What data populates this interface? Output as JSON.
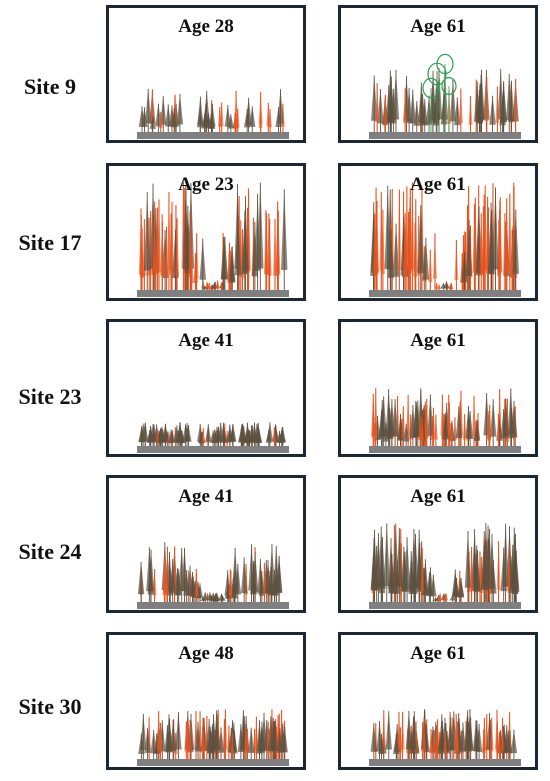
{
  "colors": {
    "frame": "#1d2733",
    "ground": "#7f7f7f",
    "live_tree": "#5c5140",
    "dead_tree": "#e8541f",
    "green_tree": "#2f9e50"
  },
  "rows": [
    {
      "site": "Site 9",
      "panels": [
        {
          "age": "Age 28",
          "profile": "low_sparse"
        },
        {
          "age": "Age 61",
          "profile": "mid_green"
        }
      ]
    },
    {
      "site": "Site 17",
      "panels": [
        {
          "age": "Age 23",
          "profile": "tall_gap"
        },
        {
          "age": "Age 61",
          "profile": "tall_gap"
        }
      ]
    },
    {
      "site": "Site 23",
      "panels": [
        {
          "age": "Age 41",
          "profile": "flat_low"
        },
        {
          "age": "Age 61",
          "profile": "low_spiky"
        }
      ]
    },
    {
      "site": "Site 24",
      "panels": [
        {
          "age": "Age 41",
          "profile": "mid_gap"
        },
        {
          "age": "Age 61",
          "profile": "tall_gap_dark"
        }
      ]
    },
    {
      "site": "Site 30",
      "panels": [
        {
          "age": "Age 48",
          "profile": "low_even"
        },
        {
          "age": "Age 61",
          "profile": "low_even"
        }
      ]
    }
  ]
}
